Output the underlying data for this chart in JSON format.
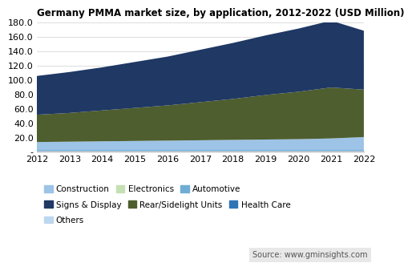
{
  "title": "Germany PMMA market size, by application, 2012-2022 (USD Million)",
  "years": [
    2012,
    2013,
    2014,
    2015,
    2016,
    2017,
    2018,
    2019,
    2020,
    2021,
    2022
  ],
  "stack_order": [
    "Others",
    "Health Care",
    "Automotive",
    "Electronics",
    "Construction",
    "Rear/Sidelight Units",
    "Signs & Display"
  ],
  "colors": [
    "#bdd7ee",
    "#2e75b6",
    "#70add4",
    "#c5e0b4",
    "#9dc3e6",
    "#4e5e2e",
    "#1f3864"
  ],
  "data": {
    "Others": [
      1.0,
      1.0,
      1.0,
      1.0,
      1.0,
      1.0,
      1.0,
      1.0,
      1.0,
      1.0,
      1.0
    ],
    "Health Care": [
      0.5,
      0.5,
      0.5,
      0.5,
      0.5,
      0.5,
      0.5,
      0.5,
      0.5,
      0.5,
      0.5
    ],
    "Automotive": [
      0.5,
      0.5,
      0.5,
      0.5,
      0.5,
      0.5,
      0.5,
      0.5,
      0.5,
      0.5,
      0.5
    ],
    "Electronics": [
      0.5,
      0.5,
      0.5,
      0.5,
      0.5,
      0.5,
      0.5,
      0.5,
      0.5,
      0.5,
      0.5
    ],
    "Construction": [
      11,
      11.5,
      12,
      12.5,
      13,
      13.5,
      14,
      14.5,
      15,
      16,
      18
    ],
    "Rear/Sidelight Units": [
      38,
      40,
      43,
      46,
      49,
      53,
      57,
      62,
      66,
      71,
      66
    ],
    "Signs & Display": [
      54,
      57,
      60,
      64,
      68,
      73,
      78,
      83,
      88,
      93,
      82
    ]
  },
  "legend_categories": [
    "Construction",
    "Electronics",
    "Automotive",
    "Signs & Display",
    "Rear/Sidelight Units",
    "Health Care",
    "Others"
  ],
  "legend_colors": [
    "#9dc3e6",
    "#c5e0b4",
    "#70add4",
    "#1f3864",
    "#4e5e2e",
    "#2e75b6",
    "#bdd7ee"
  ],
  "ylim": [
    0,
    180
  ],
  "yticks": [
    0,
    20,
    40,
    60,
    80,
    100,
    120,
    140,
    160,
    180
  ],
  "ytick_labels": [
    "-",
    "20.0",
    "40.0",
    "60.0",
    "80.0",
    "100.0",
    "120.0",
    "140.0",
    "160.0",
    "180.0"
  ],
  "source_text": "Source: www.gminsights.com"
}
